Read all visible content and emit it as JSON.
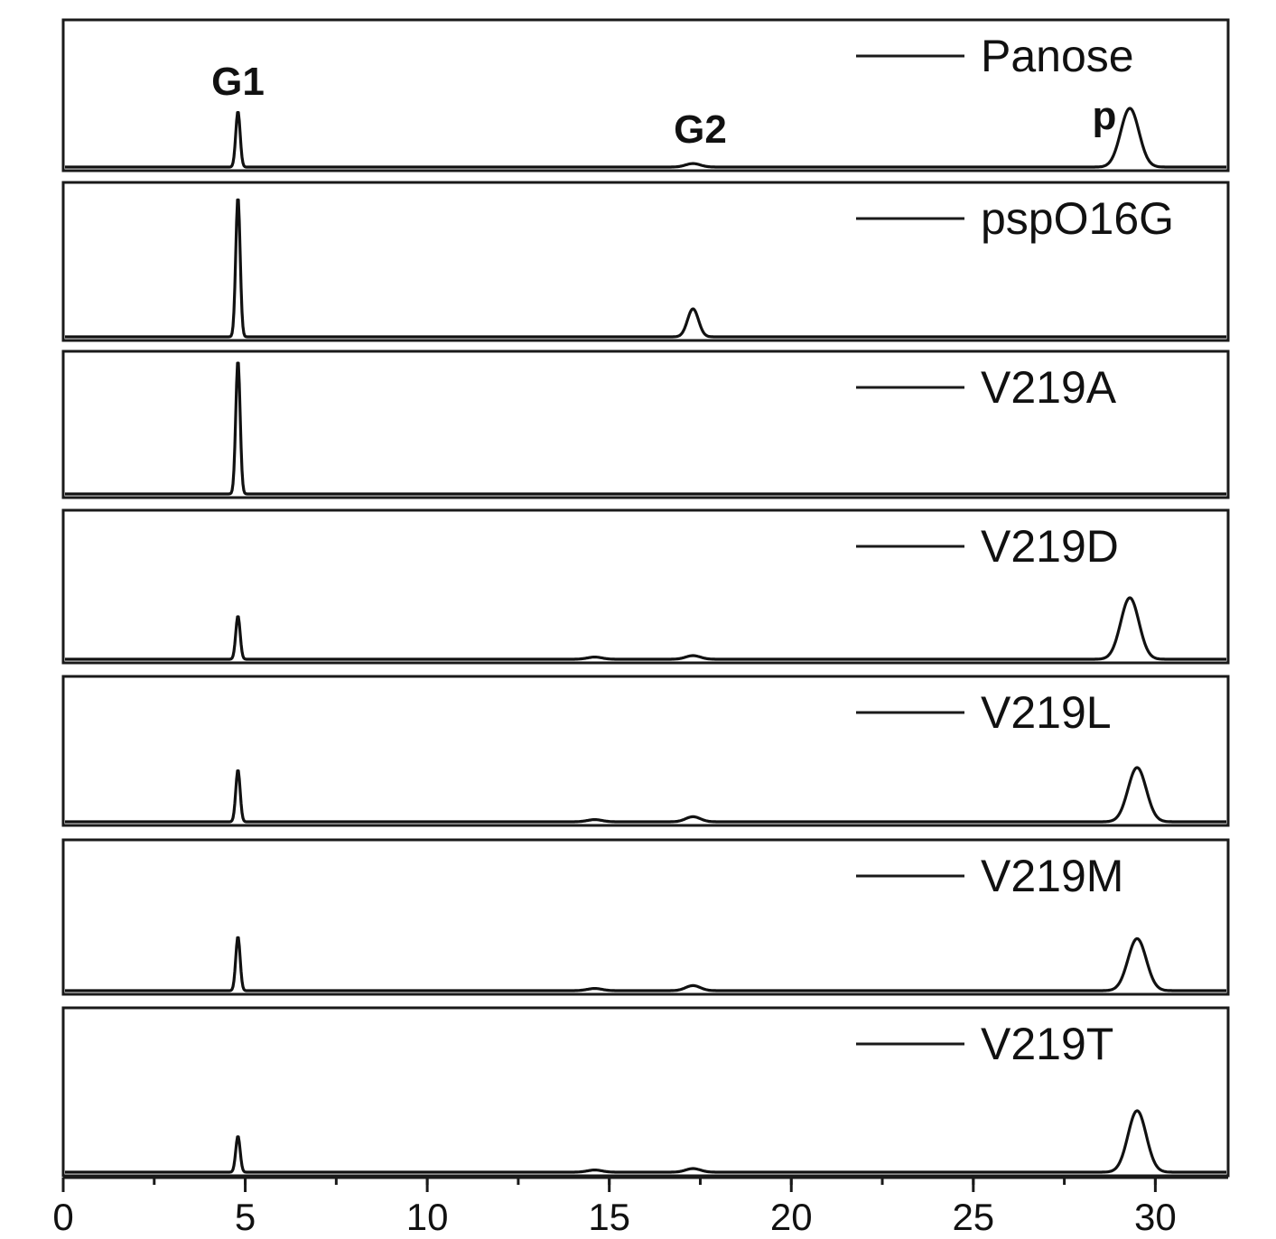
{
  "chart_data": {
    "type": "line",
    "xlim": [
      0,
      32
    ],
    "x_ticks": [
      0,
      5,
      10,
      15,
      20,
      25,
      30
    ],
    "x_tick_labels": [
      "0",
      "5",
      "10",
      "15",
      "20",
      "25",
      "30"
    ],
    "xlabel": "",
    "ylabel": "",
    "legend_placement": "top-right of each panel",
    "panels": [
      {
        "name": "Panose",
        "annotations": [
          {
            "text": "G1",
            "x": 4.8
          },
          {
            "text": "G2",
            "x": 17.5
          },
          {
            "text": "p",
            "x": 28.6
          }
        ],
        "peaks": [
          {
            "x": 4.8,
            "height": 0.95,
            "width": 0.06
          },
          {
            "x": 17.3,
            "height": 0.06,
            "width": 0.2
          },
          {
            "x": 29.3,
            "height": 1.0,
            "width": 0.25
          }
        ]
      },
      {
        "name": "pspO16G",
        "annotations": [],
        "peaks": [
          {
            "x": 4.8,
            "height": 1.0,
            "width": 0.06
          },
          {
            "x": 17.3,
            "height": 0.2,
            "width": 0.15
          }
        ]
      },
      {
        "name": "V219A",
        "annotations": [],
        "peaks": [
          {
            "x": 4.8,
            "height": 1.0,
            "width": 0.06
          }
        ]
      },
      {
        "name": "V219D",
        "annotations": [],
        "peaks": [
          {
            "x": 4.8,
            "height": 0.6,
            "width": 0.06
          },
          {
            "x": 14.6,
            "height": 0.03,
            "width": 0.2
          },
          {
            "x": 17.3,
            "height": 0.05,
            "width": 0.2
          },
          {
            "x": 29.3,
            "height": 0.85,
            "width": 0.25
          }
        ]
      },
      {
        "name": "V219L",
        "annotations": [],
        "peaks": [
          {
            "x": 4.8,
            "height": 0.72,
            "width": 0.06
          },
          {
            "x": 14.6,
            "height": 0.03,
            "width": 0.2
          },
          {
            "x": 17.3,
            "height": 0.07,
            "width": 0.2
          },
          {
            "x": 29.5,
            "height": 0.75,
            "width": 0.25
          }
        ]
      },
      {
        "name": "V219M",
        "annotations": [],
        "peaks": [
          {
            "x": 4.8,
            "height": 0.75,
            "width": 0.06
          },
          {
            "x": 14.6,
            "height": 0.03,
            "width": 0.2
          },
          {
            "x": 17.3,
            "height": 0.07,
            "width": 0.2
          },
          {
            "x": 29.5,
            "height": 0.72,
            "width": 0.25
          }
        ]
      },
      {
        "name": "V219T",
        "annotations": [],
        "peaks": [
          {
            "x": 4.8,
            "height": 0.5,
            "width": 0.06
          },
          {
            "x": 14.6,
            "height": 0.03,
            "width": 0.2
          },
          {
            "x": 17.3,
            "height": 0.05,
            "width": 0.2
          },
          {
            "x": 29.5,
            "height": 0.85,
            "width": 0.25
          }
        ]
      }
    ]
  }
}
